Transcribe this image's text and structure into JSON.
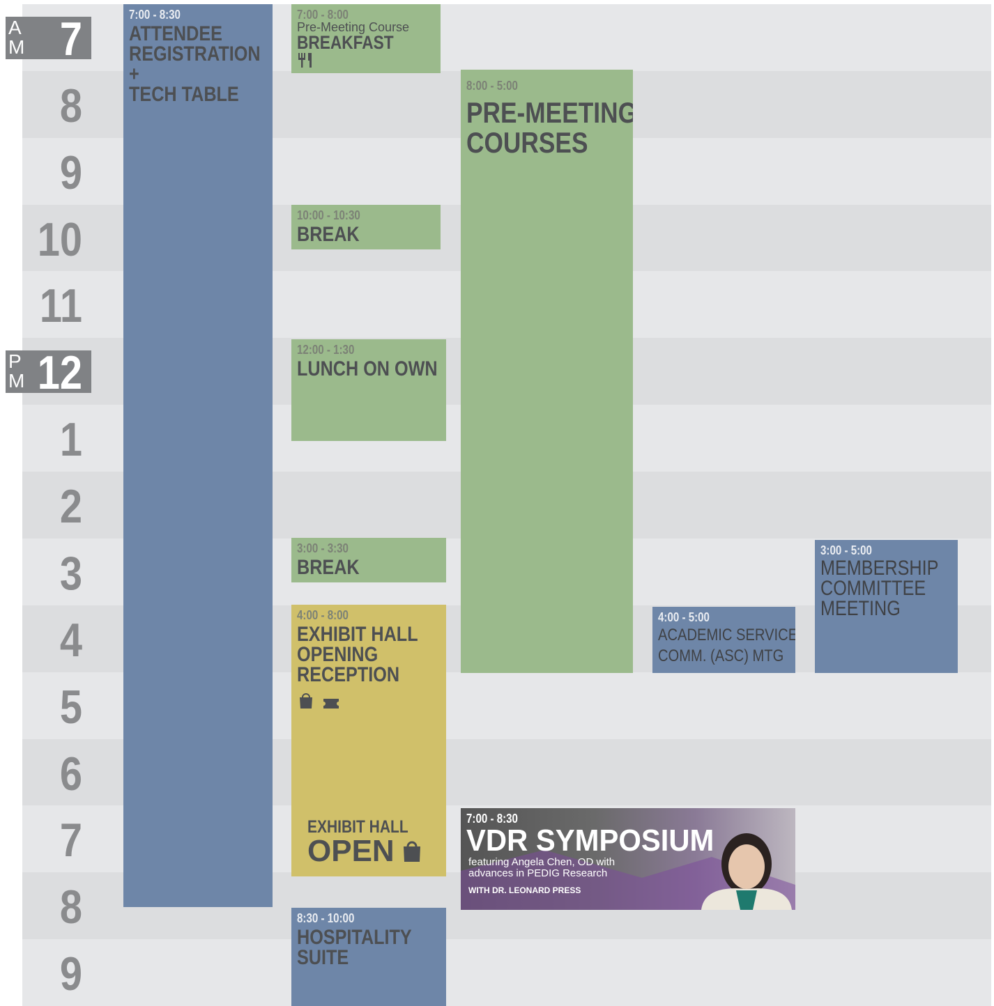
{
  "schedule": {
    "hours": [
      "7",
      "8",
      "9",
      "10",
      "11",
      "12",
      "1",
      "2",
      "3",
      "4",
      "5",
      "6",
      "7",
      "8",
      "9"
    ],
    "am_marker": [
      "A",
      "M"
    ],
    "pm_marker": [
      "P",
      "M"
    ],
    "events": [
      {
        "time": "7:00 - 8:30",
        "title": [
          "ATTENDEE",
          "REGISTRATION",
          "+",
          "TECH TABLE"
        ]
      },
      {
        "time": "7:00 - 8:00",
        "subtitle": "Pre-Meeting Course",
        "title": [
          "BREAKFAST"
        ]
      },
      {
        "time": "8:00 - 5:00",
        "title": [
          "PRE-MEETING",
          "COURSES"
        ]
      },
      {
        "time": "10:00 - 10:30",
        "title": [
          "BREAK"
        ]
      },
      {
        "time": "12:00 - 1:30",
        "title": [
          "LUNCH ON OWN"
        ]
      },
      {
        "time": "3:00 - 3:30",
        "title": [
          "BREAK"
        ]
      },
      {
        "time": "4:00 - 8:00",
        "title": [
          "EXHIBIT HALL",
          "OPENING",
          "RECEPTION"
        ],
        "footer": [
          "EXHIBIT HALL",
          "OPEN"
        ]
      },
      {
        "time": "8:30 - 10:00",
        "title": [
          "HOSPITALITY",
          "SUITE"
        ]
      },
      {
        "time": "7:00 - 8:30",
        "title": [
          "VDR SYMPOSIUM"
        ],
        "subtitle": [
          "featuring Angela Chen, OD with",
          "advances in PEDIG Research"
        ],
        "footer": [
          "WITH DR. LEONARD PRESS"
        ]
      },
      {
        "time": "4:00 - 5:00",
        "title": [
          "ACADEMIC SERVICES",
          "COMM. (ASC) MTG"
        ]
      },
      {
        "time": "3:00 - 5:00",
        "title": [
          "MEMBERSHIP",
          "COMMITTEE",
          "MEETING"
        ]
      }
    ]
  }
}
